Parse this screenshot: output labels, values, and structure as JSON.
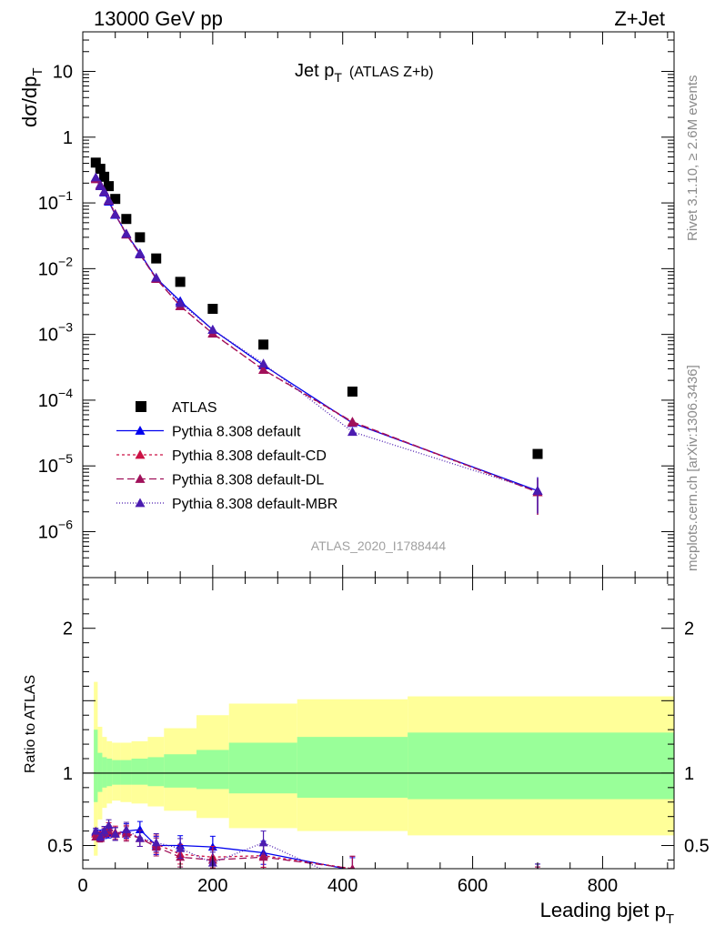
{
  "header": {
    "left": "13000 GeV pp",
    "right": "Z+Jet"
  },
  "side": {
    "top": "Rivet 3.1.10, ≥ 2.6M events",
    "bottom": "mcplots.cern.ch [arXiv:1306.3436]"
  },
  "chart_data": [
    {
      "type": "scatter",
      "title": "Jet p",
      "title_sub": "T",
      "title_note": "(ATLAS Z+b)",
      "ylabel": "dσ/dp",
      "ylabel_sub": "T",
      "watermark": "ATLAS_2020_I1788444",
      "yscale": "log",
      "xlim": [
        0,
        910
      ],
      "ylim": [
        2e-07,
        40
      ],
      "yticks": [
        {
          "v": 1e-06,
          "label": "10",
          "sup": "−6"
        },
        {
          "v": 1e-05,
          "label": "10",
          "sup": "−5"
        },
        {
          "v": 0.0001,
          "label": "10",
          "sup": "−4"
        },
        {
          "v": 0.001,
          "label": "10",
          "sup": "−3"
        },
        {
          "v": 0.01,
          "label": "10",
          "sup": "−2"
        },
        {
          "v": 0.1,
          "label": "10",
          "sup": "−1"
        },
        {
          "v": 1,
          "label": "1",
          "sup": ""
        },
        {
          "v": 10,
          "label": "10",
          "sup": ""
        }
      ],
      "x": [
        20,
        27,
        33,
        40,
        50,
        67,
        88,
        113,
        150,
        200,
        278,
        415,
        700
      ],
      "series": [
        {
          "name": "ATLAS",
          "color": "#000000",
          "marker": "square",
          "values": [
            0.41,
            0.33,
            0.25,
            0.18,
            0.115,
            0.057,
            0.03,
            0.0143,
            0.0063,
            0.00245,
            0.0007,
            0.000135,
            1.52e-05
          ]
        },
        {
          "name": "Pythia 8.308 default",
          "color": "#0000ee",
          "marker": "triangle",
          "dash": "",
          "values": [
            0.24,
            0.19,
            0.145,
            0.105,
            0.066,
            0.034,
            0.0172,
            0.0072,
            0.0032,
            0.00118,
            0.00034,
            4.5e-05,
            4.2e-06
          ]
        },
        {
          "name": "Pythia 8.308 default-CD",
          "color": "#cc1144",
          "marker": "triangle",
          "dash": "3,3",
          "values": [
            0.235,
            0.185,
            0.15,
            0.11,
            0.068,
            0.034,
            0.0166,
            0.0071,
            0.0027,
            0.00104,
            0.00029,
            4.6e-05,
            4e-06
          ]
        },
        {
          "name": "Pythia 8.308 default-DL",
          "color": "#a0105a",
          "marker": "triangle",
          "dash": "8,4",
          "values": [
            0.23,
            0.18,
            0.148,
            0.108,
            0.067,
            0.033,
            0.0165,
            0.007,
            0.0027,
            0.00103,
            0.00029,
            4.7e-05,
            4e-06
          ]
        },
        {
          "name": "Pythia 8.308 default-MBR",
          "color": "#4b1bb0",
          "marker": "triangle",
          "dash": "1,2",
          "values": [
            0.245,
            0.18,
            0.15,
            0.11,
            0.067,
            0.034,
            0.0166,
            0.0073,
            0.003,
            0.00118,
            0.00036,
            3.3e-05,
            4.2e-06
          ]
        }
      ]
    },
    {
      "type": "line",
      "ylabel": "Ratio to ATLAS",
      "xlabel": "Leading bjet p",
      "xlabel_sub": "T",
      "xlim": [
        0,
        910
      ],
      "ylim": [
        0.34,
        2.35
      ],
      "xticks": [
        0,
        200,
        400,
        600,
        800
      ],
      "yticks": [
        0.5,
        1,
        2
      ],
      "ytick_labels": [
        "0.5",
        "1",
        "2"
      ],
      "bands": {
        "edges": [
          17,
          23,
          30,
          37,
          45,
          58,
          75,
          100,
          125,
          175,
          225,
          330,
          500,
          910
        ],
        "green_low": [
          0.8,
          0.87,
          0.9,
          0.91,
          0.92,
          0.92,
          0.92,
          0.91,
          0.9,
          0.89,
          0.86,
          0.83,
          0.82
        ],
        "green_high": [
          1.3,
          1.14,
          1.11,
          1.1,
          1.09,
          1.09,
          1.1,
          1.11,
          1.13,
          1.16,
          1.21,
          1.25,
          1.28
        ],
        "yellow_low": [
          0.43,
          0.68,
          0.76,
          0.79,
          0.81,
          0.8,
          0.79,
          0.77,
          0.74,
          0.69,
          0.62,
          0.6,
          0.57
        ],
        "yellow_high": [
          1.63,
          1.32,
          1.25,
          1.22,
          1.21,
          1.21,
          1.22,
          1.25,
          1.31,
          1.4,
          1.48,
          1.51,
          1.53
        ]
      },
      "x": [
        20,
        27,
        33,
        40,
        50,
        67,
        88,
        113,
        150,
        200,
        278,
        415,
        700
      ],
      "series": [
        {
          "name": "Pythia 8.308 default",
          "color": "#0000ee",
          "dash": "",
          "values": [
            0.59,
            0.58,
            0.58,
            0.59,
            0.58,
            0.6,
            0.61,
            0.5,
            0.5,
            0.49,
            0.45,
            0.33,
            0.28
          ]
        },
        {
          "name": "Pythia 8.308 default-CD",
          "color": "#cc1144",
          "dash": "3,3",
          "values": [
            0.58,
            0.57,
            0.6,
            0.62,
            0.59,
            0.59,
            0.55,
            0.51,
            0.44,
            0.42,
            0.43,
            0.34,
            0.26
          ]
        },
        {
          "name": "Pythia 8.308 default-DL",
          "color": "#a0105a",
          "dash": "8,4",
          "values": [
            0.56,
            0.55,
            0.59,
            0.6,
            0.58,
            0.58,
            0.55,
            0.49,
            0.42,
            0.4,
            0.42,
            0.34,
            0.26
          ]
        },
        {
          "name": "Pythia 8.308 default-MBR",
          "color": "#4b1bb0",
          "dash": "1,2",
          "values": [
            0.6,
            0.56,
            0.6,
            0.64,
            0.58,
            0.61,
            0.55,
            0.52,
            0.48,
            0.38,
            0.52,
            0.24,
            0.28
          ]
        }
      ]
    }
  ]
}
